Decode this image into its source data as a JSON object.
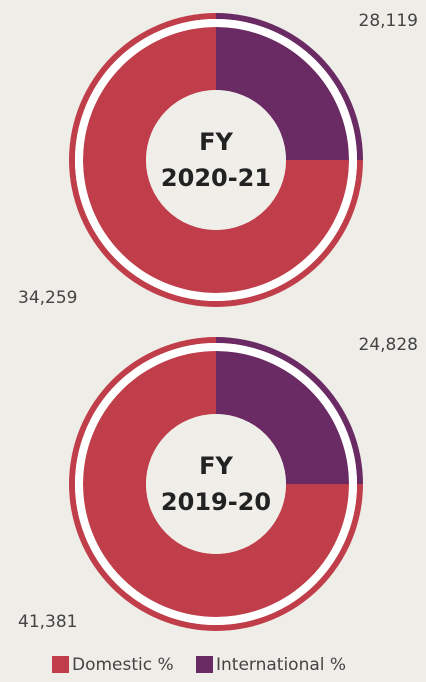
{
  "chart_data": [
    {
      "type": "pie",
      "title": [
        "FY",
        "2020-21"
      ],
      "categories": [
        "Domestic %",
        "International %"
      ],
      "values": [
        75,
        25
      ],
      "colors": [
        "#c03e4a",
        "#6a2a63"
      ],
      "totals": [
        {
          "value": 28119,
          "label": "28,119"
        },
        {
          "value": 34259,
          "label": "34,259"
        }
      ]
    },
    {
      "type": "pie",
      "title": [
        "FY",
        "2019-20"
      ],
      "categories": [
        "Domestic %",
        "International %"
      ],
      "values": [
        75,
        25
      ],
      "colors": [
        "#c03e4a",
        "#6a2a63"
      ],
      "totals": [
        {
          "value": 24828,
          "label": "24,828"
        },
        {
          "value": 41381,
          "label": "41,381"
        }
      ]
    }
  ]
}
